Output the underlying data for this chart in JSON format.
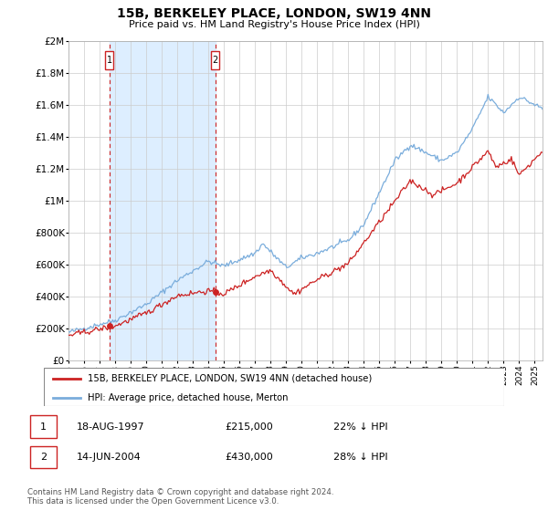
{
  "title": "15B, BERKELEY PLACE, LONDON, SW19 4NN",
  "subtitle": "Price paid vs. HM Land Registry's House Price Index (HPI)",
  "ylim": [
    0,
    2000000
  ],
  "yticks": [
    0,
    200000,
    400000,
    600000,
    800000,
    1000000,
    1200000,
    1400000,
    1600000,
    1800000,
    2000000
  ],
  "ytick_labels": [
    "£0",
    "£200K",
    "£400K",
    "£600K",
    "£800K",
    "£1M",
    "£1.2M",
    "£1.4M",
    "£1.6M",
    "£1.8M",
    "£2M"
  ],
  "hpi_color": "#7aaddc",
  "price_color": "#cc2222",
  "purchase1_date": 1997.62,
  "purchase1_price": 215000,
  "purchase2_date": 2004.45,
  "purchase2_price": 430000,
  "shade_color": "#ddeeff",
  "vline_color": "#cc2222",
  "legend_label1": "15B, BERKELEY PLACE, LONDON, SW19 4NN (detached house)",
  "legend_label2": "HPI: Average price, detached house, Merton",
  "table_row1_num": "1",
  "table_row1_date": "18-AUG-1997",
  "table_row1_price": "£215,000",
  "table_row1_hpi": "22% ↓ HPI",
  "table_row2_num": "2",
  "table_row2_date": "14-JUN-2004",
  "table_row2_price": "£430,000",
  "table_row2_hpi": "28% ↓ HPI",
  "footer": "Contains HM Land Registry data © Crown copyright and database right 2024.\nThis data is licensed under the Open Government Licence v3.0.",
  "xmin": 1995.0,
  "xmax": 2025.5
}
